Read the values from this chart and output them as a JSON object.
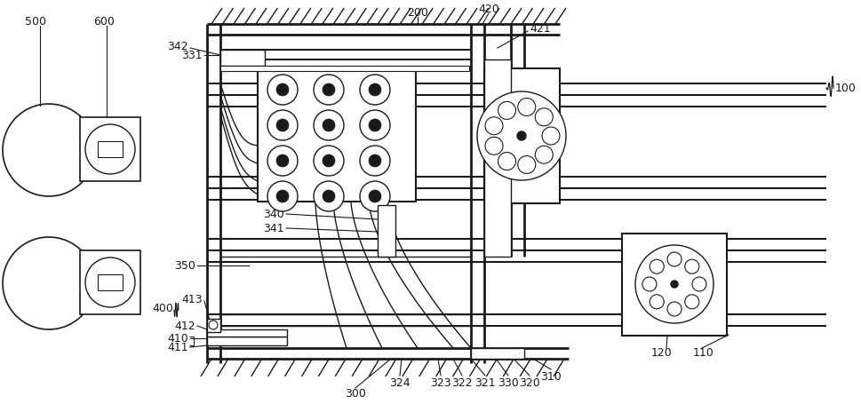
{
  "bg_color": "#ffffff",
  "lc": "#1a1a1a",
  "fig_w": 9.7,
  "fig_h": 4.56,
  "dpi": 100
}
